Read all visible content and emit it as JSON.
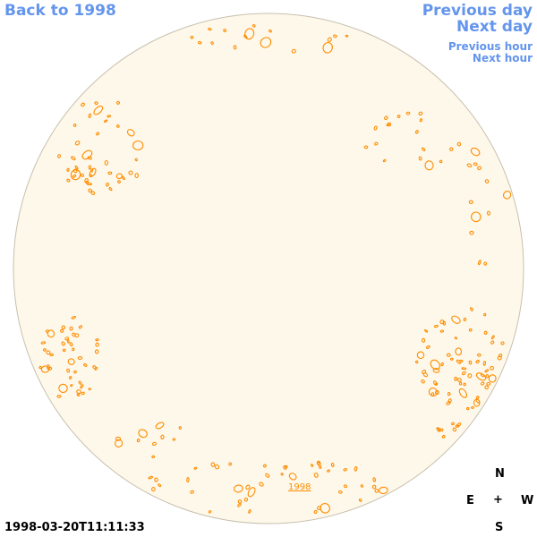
{
  "nav": {
    "back": "Back to 1998",
    "previous_day": "Previous day",
    "next_day": "Next day",
    "previous_hour": "Previous hour",
    "next_hour": "Next hour"
  },
  "timestamp": "1998-03-20T11:11:33",
  "compass": {
    "n": "N",
    "e": "E",
    "center": "+",
    "w": "W",
    "s": "S"
  },
  "year_link": "1998",
  "colors": {
    "link": "#6495ed",
    "disk": "#fdf8e9",
    "contour": "#ff8c00",
    "disk_edge": "#c8c0b0"
  }
}
